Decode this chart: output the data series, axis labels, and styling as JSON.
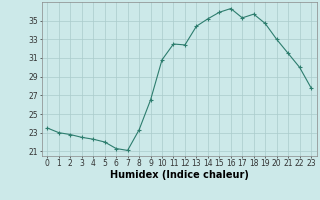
{
  "x": [
    0,
    1,
    2,
    3,
    4,
    5,
    6,
    7,
    8,
    9,
    10,
    11,
    12,
    13,
    14,
    15,
    16,
    17,
    18,
    19,
    20,
    21,
    22,
    23
  ],
  "y": [
    23.5,
    23.0,
    22.8,
    22.5,
    22.3,
    22.0,
    21.3,
    21.1,
    23.3,
    26.5,
    30.8,
    32.5,
    32.4,
    34.4,
    35.2,
    35.9,
    36.3,
    35.3,
    35.7,
    34.7,
    33.0,
    31.5,
    30.0,
    27.8
  ],
  "line_color": "#2d7d6e",
  "marker": "+",
  "marker_size": 3,
  "bg_color": "#cce9e9",
  "grid_color": "#aacccc",
  "xlabel": "Humidex (Indice chaleur)",
  "xlim": [
    -0.5,
    23.5
  ],
  "ylim": [
    20.5,
    37.0
  ],
  "yticks": [
    21,
    23,
    25,
    27,
    29,
    31,
    33,
    35
  ],
  "xticks": [
    0,
    1,
    2,
    3,
    4,
    5,
    6,
    7,
    8,
    9,
    10,
    11,
    12,
    13,
    14,
    15,
    16,
    17,
    18,
    19,
    20,
    21,
    22,
    23
  ],
  "tick_fontsize": 5.5,
  "xlabel_fontsize": 7.0
}
